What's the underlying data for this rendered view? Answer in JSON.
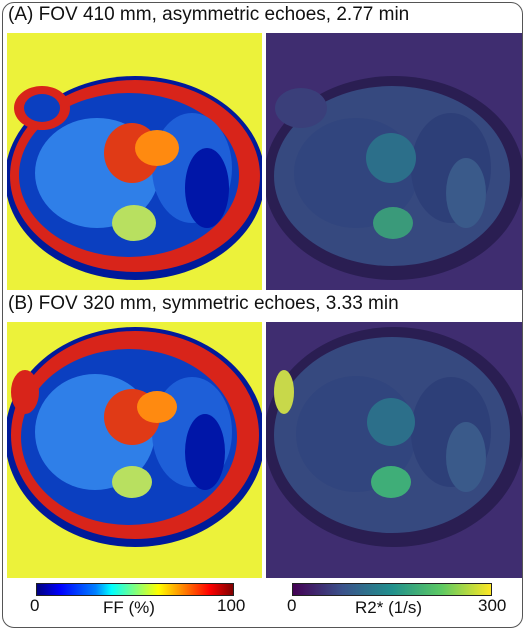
{
  "rows": [
    {
      "title": "(A) FOV 410 mm, asymmetric echoes, 2.77 min"
    },
    {
      "title": "(B) FOV 320 mm, symmetric echoes, 3.33 min"
    }
  ],
  "colorbars": {
    "ff": {
      "min": "0",
      "max": "100",
      "label": "FF (%)",
      "colormap": "jet"
    },
    "r2": {
      "min": "0",
      "max": "300",
      "label": "R2* (1/s)",
      "colormap": "viridis"
    }
  },
  "colors": {
    "ff_background": "#ecf23a",
    "r2_background": "#3b2a6e",
    "frame": "#555555"
  }
}
